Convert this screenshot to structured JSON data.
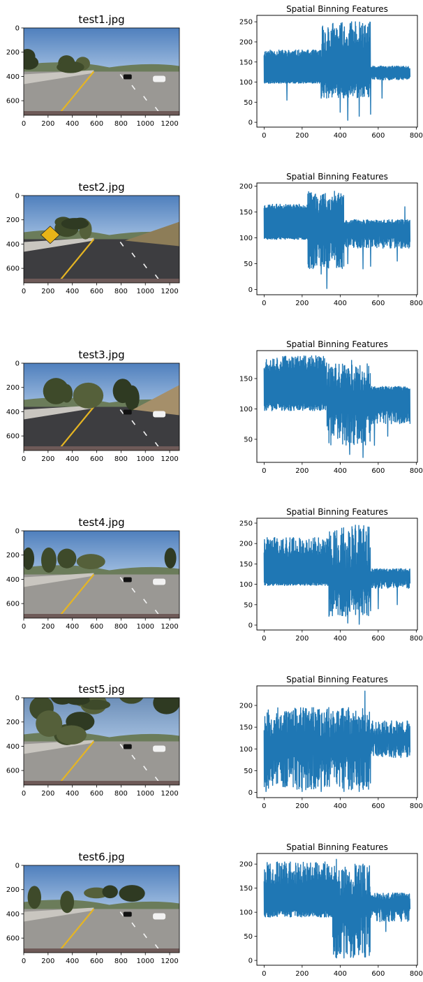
{
  "chart_data": [
    {
      "type": "image",
      "title": "test1.jpg",
      "xticks": [
        0,
        200,
        400,
        600,
        800,
        1000,
        1200
      ],
      "yticks": [
        0,
        200,
        400,
        600
      ],
      "xlim": [
        0,
        1280
      ],
      "ylim": [
        720,
        0
      ],
      "scene": "road"
    },
    {
      "type": "line",
      "title": "Spatial Binning Features",
      "xticks": [
        0,
        200,
        400,
        600,
        800
      ],
      "yticks": [
        0,
        50,
        100,
        150,
        200,
        250
      ],
      "xlim": [
        -38,
        806
      ],
      "ylim": [
        -12,
        266
      ],
      "color": "#1f77b4",
      "seed": 11,
      "segments": [
        {
          "x0": 0,
          "x1": 300,
          "hi": [
            162,
            180
          ],
          "lo": [
            97,
            104
          ]
        },
        {
          "x0": 300,
          "x1": 560,
          "hi": [
            160,
            250
          ],
          "lo": [
            60,
            105
          ]
        },
        {
          "x0": 560,
          "x1": 768,
          "hi": [
            132,
            140
          ],
          "lo": [
            105,
            115
          ]
        }
      ],
      "spikes_up": [
        [
          330,
          200
        ],
        [
          460,
          250
        ],
        [
          480,
          250
        ],
        [
          520,
          220
        ]
      ],
      "spikes_down": [
        [
          120,
          55
        ],
        [
          300,
          60
        ],
        [
          400,
          25
        ],
        [
          440,
          5
        ],
        [
          500,
          15
        ],
        [
          560,
          20
        ],
        [
          620,
          60
        ]
      ]
    },
    {
      "type": "image",
      "title": "test2.jpg",
      "xticks": [
        0,
        200,
        400,
        600,
        800,
        1000,
        1200
      ],
      "yticks": [
        0,
        200,
        400,
        600
      ],
      "xlim": [
        0,
        1280
      ],
      "ylim": [
        720,
        0
      ],
      "scene": "sign"
    },
    {
      "type": "line",
      "title": "Spatial Binning Features",
      "xticks": [
        0,
        200,
        400,
        600,
        800
      ],
      "yticks": [
        0,
        50,
        100,
        150,
        200
      ],
      "xlim": [
        -38,
        806
      ],
      "ylim": [
        -10,
        206
      ],
      "color": "#1f77b4",
      "seed": 23,
      "segments": [
        {
          "x0": 0,
          "x1": 230,
          "hi": [
            155,
            165
          ],
          "lo": [
            97,
            102
          ]
        },
        {
          "x0": 230,
          "x1": 420,
          "hi": [
            145,
            190
          ],
          "lo": [
            40,
            100
          ]
        },
        {
          "x0": 420,
          "x1": 768,
          "hi": [
            125,
            135
          ],
          "lo": [
            80,
            105
          ]
        }
      ],
      "spikes_up": [
        [
          370,
          190
        ],
        [
          410,
          180
        ],
        [
          740,
          160
        ]
      ],
      "spikes_down": [
        [
          330,
          2
        ],
        [
          300,
          30
        ],
        [
          440,
          50
        ],
        [
          520,
          40
        ],
        [
          560,
          45
        ],
        [
          700,
          55
        ]
      ]
    },
    {
      "type": "image",
      "title": "test3.jpg",
      "xticks": [
        0,
        200,
        400,
        600,
        800,
        1000,
        1200
      ],
      "yticks": [
        0,
        200,
        400,
        600
      ],
      "xlim": [
        0,
        1280
      ],
      "ylim": [
        720,
        0
      ],
      "scene": "hill"
    },
    {
      "type": "line",
      "title": "Spatial Binning Features",
      "xticks": [
        0,
        200,
        400,
        600,
        800
      ],
      "yticks": [
        50,
        100,
        150
      ],
      "xlim": [
        -38,
        806
      ],
      "ylim": [
        12,
        196
      ],
      "color": "#1f77b4",
      "seed": 37,
      "segments": [
        {
          "x0": 0,
          "x1": 330,
          "hi": [
            160,
            188
          ],
          "lo": [
            97,
            110
          ]
        },
        {
          "x0": 330,
          "x1": 560,
          "hi": [
            125,
            175
          ],
          "lo": [
            40,
            100
          ]
        },
        {
          "x0": 560,
          "x1": 768,
          "hi": [
            130,
            137
          ],
          "lo": [
            75,
            100
          ]
        }
      ],
      "spikes_up": [
        [
          460,
          180
        ],
        [
          520,
          170
        ]
      ],
      "spikes_down": [
        [
          450,
          25
        ],
        [
          520,
          20
        ],
        [
          580,
          40
        ],
        [
          650,
          55
        ]
      ]
    },
    {
      "type": "image",
      "title": "test4.jpg",
      "xticks": [
        0,
        200,
        400,
        600,
        800,
        1000,
        1200
      ],
      "yticks": [
        0,
        200,
        400,
        600
      ],
      "xlim": [
        0,
        1280
      ],
      "ylim": [
        720,
        0
      ],
      "scene": "road"
    },
    {
      "type": "line",
      "title": "Spatial Binning Features",
      "xticks": [
        0,
        200,
        400,
        600,
        800
      ],
      "yticks": [
        0,
        50,
        100,
        150,
        200,
        250
      ],
      "xlim": [
        -38,
        806
      ],
      "ylim": [
        -12,
        262
      ],
      "color": "#1f77b4",
      "seed": 41,
      "segments": [
        {
          "x0": 0,
          "x1": 340,
          "hi": [
            165,
            215
          ],
          "lo": [
            97,
            105
          ]
        },
        {
          "x0": 340,
          "x1": 560,
          "hi": [
            125,
            245
          ],
          "lo": [
            20,
            100
          ]
        },
        {
          "x0": 560,
          "x1": 768,
          "hi": [
            128,
            138
          ],
          "lo": [
            90,
            110
          ]
        }
      ],
      "spikes_up": [
        [
          480,
          245
        ],
        [
          520,
          235
        ]
      ],
      "spikes_down": [
        [
          440,
          5
        ],
        [
          500,
          2
        ],
        [
          560,
          35
        ],
        [
          600,
          40
        ],
        [
          700,
          50
        ]
      ]
    },
    {
      "type": "image",
      "title": "test5.jpg",
      "xticks": [
        0,
        200,
        400,
        600,
        800,
        1000,
        1200
      ],
      "yticks": [
        0,
        200,
        400,
        600
      ],
      "xlim": [
        0,
        1280
      ],
      "ylim": [
        720,
        0
      ],
      "scene": "trees"
    },
    {
      "type": "line",
      "title": "Spatial Binning Features",
      "xticks": [
        0,
        200,
        400,
        600,
        800
      ],
      "yticks": [
        0,
        50,
        100,
        150,
        200
      ],
      "xlim": [
        -38,
        806
      ],
      "ylim": [
        -12,
        245
      ],
      "color": "#1f77b4",
      "seed": 53,
      "segments": [
        {
          "x0": 0,
          "x1": 560,
          "hi": [
            125,
            195
          ],
          "lo": [
            5,
            100
          ]
        },
        {
          "x0": 560,
          "x1": 768,
          "hi": [
            125,
            165
          ],
          "lo": [
            80,
            115
          ]
        }
      ],
      "spikes_up": [
        [
          530,
          233
        ],
        [
          340,
          195
        ]
      ],
      "spikes_down": [
        [
          10,
          2
        ],
        [
          200,
          2
        ],
        [
          300,
          2
        ],
        [
          420,
          2
        ],
        [
          500,
          2
        ]
      ]
    },
    {
      "type": "image",
      "title": "test6.jpg",
      "xticks": [
        0,
        200,
        400,
        600,
        800,
        1000,
        1200
      ],
      "yticks": [
        0,
        200,
        400,
        600
      ],
      "xlim": [
        0,
        1280
      ],
      "ylim": [
        720,
        0
      ],
      "scene": "road"
    },
    {
      "type": "line",
      "title": "Spatial Binning Features",
      "xticks": [
        0,
        200,
        400,
        600,
        800
      ],
      "yticks": [
        0,
        50,
        100,
        150,
        200
      ],
      "xlim": [
        -38,
        806
      ],
      "ylim": [
        -10,
        222
      ],
      "color": "#1f77b4",
      "seed": 67,
      "segments": [
        {
          "x0": 0,
          "x1": 360,
          "hi": [
            150,
            205
          ],
          "lo": [
            90,
            105
          ]
        },
        {
          "x0": 360,
          "x1": 560,
          "hi": [
            125,
            200
          ],
          "lo": [
            5,
            100
          ]
        },
        {
          "x0": 560,
          "x1": 768,
          "hi": [
            125,
            140
          ],
          "lo": [
            80,
            110
          ]
        }
      ],
      "spikes_up": [
        [
          380,
          210
        ],
        [
          520,
          200
        ]
      ],
      "spikes_down": [
        [
          420,
          5
        ],
        [
          460,
          20
        ],
        [
          640,
          60
        ]
      ]
    }
  ]
}
